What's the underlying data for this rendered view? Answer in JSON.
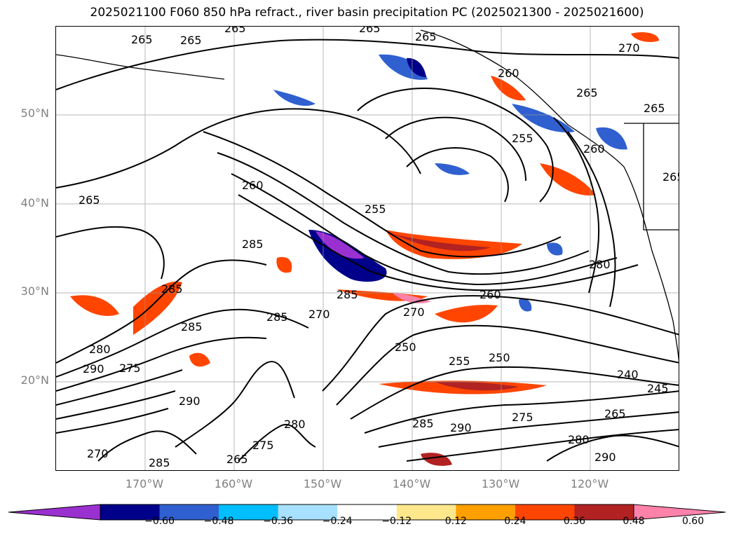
{
  "title": "2025021100 F060 850 hPa refract., river basin precipitation PC (2025021300 - 2025021600)",
  "lat_labels": [
    "50°N",
    "40°N",
    "30°N",
    "20°N"
  ],
  "lon_labels": [
    "170°W",
    "160°W",
    "150°W",
    "140°W",
    "130°W",
    "120°W"
  ],
  "contour_labels": [
    "265",
    "265",
    "265",
    "265",
    "265",
    "270",
    "260",
    "265",
    "265",
    "265",
    "255",
    "260",
    "265",
    "260",
    "255",
    "285",
    "285",
    "280",
    "285",
    "285",
    "270",
    "285",
    "260",
    "270",
    "250",
    "250",
    "255",
    "240",
    "245",
    "290",
    "280",
    "275",
    "275",
    "290",
    "285",
    "280",
    "290",
    "265",
    "290",
    "270",
    "275",
    "265",
    "280",
    "285"
  ],
  "colorbar": {
    "ticks": [
      "−0.60",
      "−0.48",
      "−0.36",
      "−0.24",
      "−0.12",
      "0.12",
      "0.24",
      "0.36",
      "0.48",
      "0.60"
    ],
    "colors": [
      "#9b30d0",
      "#00008b",
      "#3060d0",
      "#00bfff",
      "#a8e0ff",
      "#ffffff",
      "#ffe88c",
      "#ffa000",
      "#ff4500",
      "#b22222",
      "#ff82aa"
    ]
  }
}
